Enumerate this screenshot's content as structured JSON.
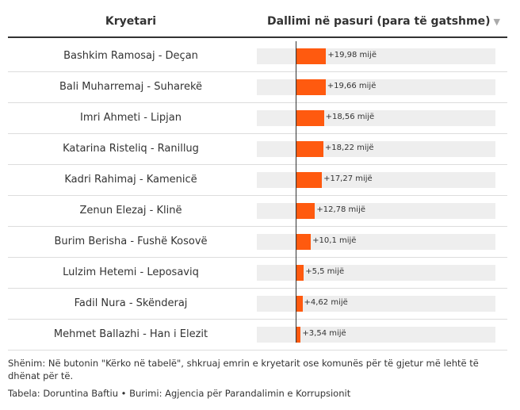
{
  "header": {
    "col_name": "Kryetari",
    "col_value": "Dallimi në pasuri (para të gatshme)"
  },
  "chart_data": {
    "type": "bar",
    "orientation": "horizontal",
    "categories": [
      "Bashkim Ramosaj - Deçan",
      "Bali Muharremaj - Suharekë",
      "Imri Ahmeti - Lipjan",
      "Katarina Risteliq - Ranillug",
      "Kadri Rahimaj - Kamenicë",
      "Zenun Elezaj - Klinë",
      "Burim Berisha - Fushë Kosovë",
      "Lulzim Hetemi - Leposaviq",
      "Fadil Nura - Skënderaj",
      "Mehmet Ballazhi - Han i Elezit"
    ],
    "values": [
      19.98,
      19.66,
      18.56,
      18.22,
      17.27,
      12.78,
      10.1,
      5.5,
      4.62,
      3.54
    ],
    "value_labels": [
      "+19,98 mijë",
      "+19,66 mijë",
      "+18,56 mijë",
      "+18,22 mijë",
      "+17,27 mijë",
      "+12,78 mijë",
      "+10,1 mijë",
      "+5,5 mijë",
      "+4,62 mijë",
      "+3,54 mijë"
    ],
    "xlim": [
      -25,
      130
    ],
    "bar_color": "#ff5a0f",
    "track_color": "#eeeeee",
    "grid": false
  },
  "footer": {
    "note": "Shënim: Në butonin \"Kërko në tabelë\", shkruaj emrin e kryetarit ose komunës për të gjetur më lehtë të dhënat për të.",
    "credit": "Tabela: Doruntina Baftiu • Burimi: Agjencia për Parandalimin e Korrupsionit"
  }
}
